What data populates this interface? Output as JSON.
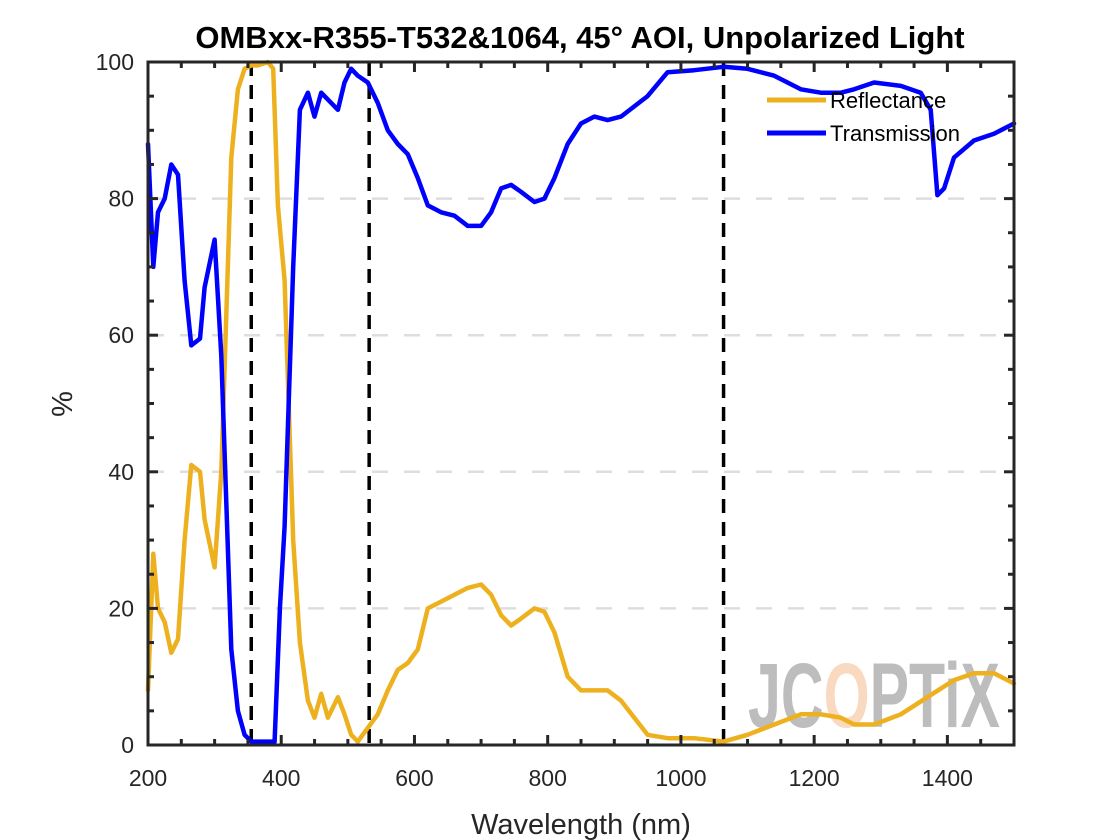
{
  "chart_data": {
    "type": "line",
    "title": "OMBxx-R355-T532&1064, 45° AOI, Unpolarized Light",
    "xlabel": "Wavelength (nm)",
    "ylabel": "%",
    "xlim": [
      200,
      1500
    ],
    "ylim": [
      0,
      100
    ],
    "xticks": [
      200,
      400,
      600,
      800,
      1000,
      1200,
      1400
    ],
    "yticks": [
      0,
      20,
      40,
      60,
      80,
      100
    ],
    "grid": "horizontal dashed light gray",
    "legend_position": "upper right",
    "reference_lines": [
      {
        "x": 355,
        "style": "dashed",
        "color": "#000000"
      },
      {
        "x": 532,
        "style": "dashed",
        "color": "#000000"
      },
      {
        "x": 1064,
        "style": "dashed",
        "color": "#000000"
      }
    ],
    "series": [
      {
        "name": "Reflectance",
        "color": "#EDB120",
        "x": [
          200,
          208,
          215,
          225,
          235,
          245,
          255,
          265,
          278,
          285,
          300,
          310,
          325,
          335,
          345,
          355,
          365,
          380,
          388,
          395,
          405,
          418,
          428,
          440,
          450,
          460,
          470,
          485,
          495,
          505,
          515,
          530,
          545,
          560,
          575,
          590,
          605,
          620,
          640,
          660,
          680,
          700,
          715,
          730,
          745,
          760,
          780,
          795,
          810,
          830,
          850,
          870,
          890,
          910,
          930,
          950,
          980,
          1020,
          1064,
          1100,
          1140,
          1180,
          1210,
          1240,
          1260,
          1290,
          1330,
          1370,
          1410,
          1440,
          1470,
          1500
        ],
        "values": [
          8,
          28,
          20,
          18,
          13.5,
          15.5,
          30,
          41,
          40,
          33,
          26,
          40,
          86,
          96,
          99,
          99.5,
          99.5,
          100,
          99,
          79,
          68,
          30,
          15,
          6.5,
          4,
          7.5,
          4,
          7,
          4.5,
          1.5,
          0.5,
          2.5,
          4.5,
          8,
          11,
          12,
          14,
          20,
          21,
          22,
          23,
          23.5,
          22,
          19,
          17.5,
          18.5,
          20,
          19.5,
          16.5,
          10,
          8,
          8,
          8,
          6.5,
          4,
          1.5,
          1,
          1,
          0.5,
          1.5,
          3,
          4.5,
          4.5,
          4,
          3,
          3,
          4.5,
          7,
          9.5,
          10.5,
          10.5,
          9
        ]
      },
      {
        "name": "Transmission",
        "color": "#0000FF",
        "x": [
          200,
          208,
          215,
          225,
          235,
          245,
          255,
          265,
          278,
          285,
          300,
          310,
          325,
          335,
          345,
          355,
          365,
          380,
          390,
          398,
          405,
          418,
          428,
          440,
          450,
          460,
          470,
          485,
          495,
          505,
          515,
          530,
          545,
          560,
          575,
          590,
          605,
          620,
          640,
          660,
          680,
          700,
          715,
          730,
          745,
          760,
          780,
          795,
          810,
          830,
          850,
          870,
          890,
          910,
          930,
          950,
          980,
          1020,
          1064,
          1100,
          1140,
          1180,
          1210,
          1240,
          1260,
          1290,
          1330,
          1360,
          1375,
          1385,
          1395,
          1410,
          1440,
          1470,
          1500
        ],
        "values": [
          88,
          70,
          78,
          80,
          85,
          83.5,
          68,
          58.5,
          59.5,
          67,
          74,
          57,
          14,
          5,
          1.5,
          0.5,
          0.5,
          0.5,
          0.5,
          20,
          32,
          70,
          93,
          95.5,
          92,
          95.5,
          94.5,
          93,
          97,
          99,
          98,
          97,
          94,
          90,
          88,
          86.5,
          83,
          79,
          78,
          77.5,
          76,
          76,
          78,
          81.5,
          82,
          81,
          79.5,
          80,
          83,
          88,
          91,
          92,
          91.5,
          92,
          93.5,
          95,
          98.5,
          98.8,
          99.3,
          99,
          98,
          96,
          95.5,
          95.5,
          96,
          97,
          96.5,
          95.5,
          93,
          80.5,
          81.5,
          86,
          88.5,
          89.5,
          91
        ]
      }
    ]
  },
  "legend": {
    "items": [
      {
        "label": "Reflectance",
        "color": "#EDB120"
      },
      {
        "label": "Transmission",
        "color": "#0000FF"
      }
    ]
  },
  "watermark": {
    "text_left": "JC",
    "text_accent": "O",
    "text_right": "PTiX",
    "gray": "#BDBDBD",
    "accent": "#F9D9BF"
  }
}
